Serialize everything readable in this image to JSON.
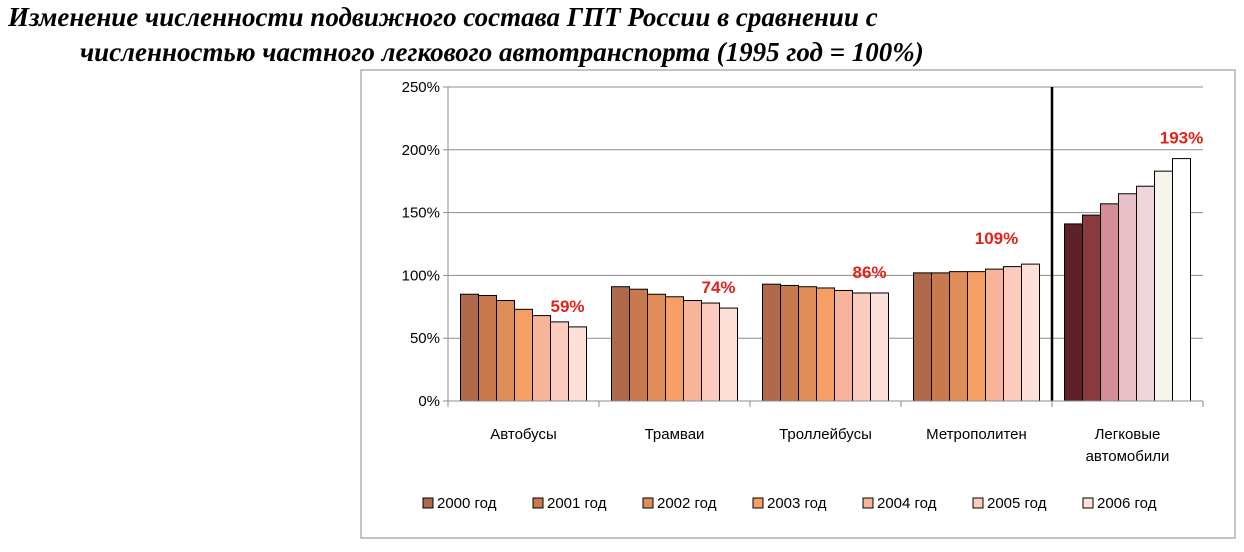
{
  "title": {
    "line1": "Изменение численности подвижного состава ГПТ России в сравнении  с",
    "line2": "численностью частного легкового автотранспорта (1995 год = 100%)"
  },
  "chart_data": {
    "type": "bar",
    "y_unit": "%",
    "ylim": [
      0,
      250
    ],
    "yticks": [
      "0%",
      "50%",
      "100%",
      "150%",
      "200%",
      "250%"
    ],
    "grid": true,
    "legend_position": "bottom",
    "categories": [
      "Автобусы",
      "Трамваи",
      "Троллейбусы",
      "Метрополитен",
      "Легковые автомобили"
    ],
    "series": [
      {
        "name": "2000 год",
        "values": [
          85,
          91,
          93,
          102,
          141
        ]
      },
      {
        "name": "2001 год",
        "values": [
          84,
          89,
          92,
          102,
          148
        ]
      },
      {
        "name": "2002 год",
        "values": [
          80,
          85,
          91,
          103,
          157
        ]
      },
      {
        "name": "2003 год",
        "values": [
          73,
          83,
          90,
          103,
          165
        ]
      },
      {
        "name": "2004 год",
        "values": [
          68,
          80,
          88,
          105,
          171
        ]
      },
      {
        "name": "2005 год",
        "values": [
          63,
          78,
          86,
          107,
          183
        ]
      },
      {
        "name": "2006 год",
        "values": [
          59,
          74,
          86,
          109,
          193
        ]
      }
    ],
    "annotations": [
      "59%",
      "74%",
      "86%",
      "109%",
      "193%"
    ],
    "colors": {
      "gpt": [
        "#b0694b",
        "#c87a4e",
        "#de8c58",
        "#f59e65",
        "#f8b49a",
        "#fbcbbd",
        "#fde0d8"
      ],
      "cars": [
        "#5e2128",
        "#8b3a3f",
        "#d38d98",
        "#e8c0c8",
        "#eed6dc",
        "#f5f5ec",
        "#ffffff"
      ],
      "annotation": "#e2231a"
    }
  }
}
